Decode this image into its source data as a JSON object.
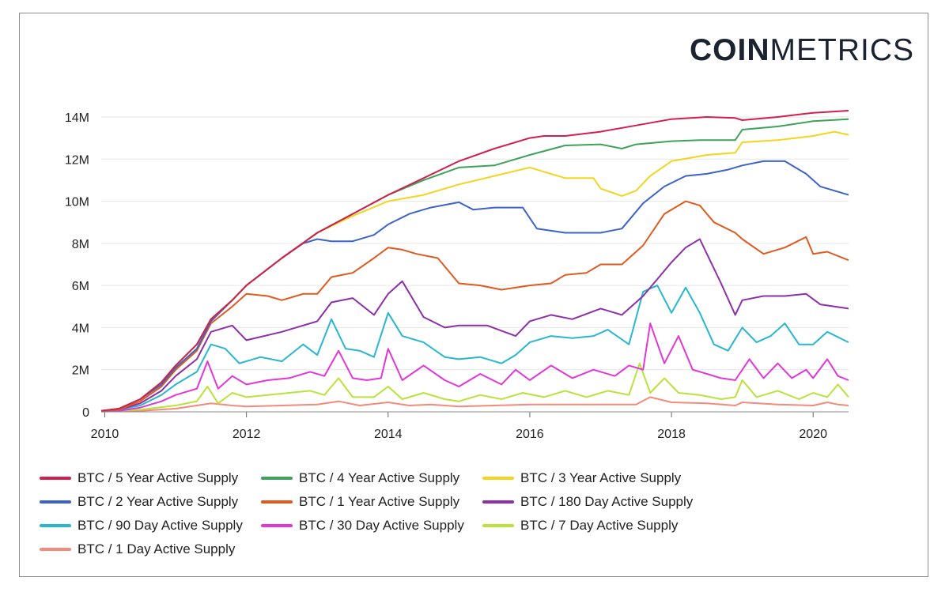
{
  "brand": {
    "bold": "COIN",
    "light": "METRICS"
  },
  "chart_data": {
    "type": "line",
    "title": "",
    "xlabel": "",
    "ylabel": "",
    "x_ticks": [
      "2010",
      "2012",
      "2014",
      "2016",
      "2018",
      "2020"
    ],
    "y_ticks": [
      "0",
      "2M",
      "4M",
      "6M",
      "8M",
      "10M",
      "12M",
      "14M"
    ],
    "xlim": [
      2009.95,
      2020.5
    ],
    "ylim": [
      0,
      14
    ],
    "y_unit": "millions",
    "grid": true,
    "legend_position": "bottom",
    "series": [
      {
        "name": "BTC / 5 Year Active Supply",
        "color": "#d21f4e",
        "x": [
          2009.95,
          2010.2,
          2010.5,
          2010.8,
          2011.0,
          2011.3,
          2011.5,
          2011.8,
          2012.0,
          2012.5,
          2013.0,
          2013.5,
          2014.0,
          2014.5,
          2015.0,
          2015.5,
          2016.0,
          2016.2,
          2016.5,
          2017.0,
          2017.5,
          2018.0,
          2018.5,
          2018.9,
          2019.0,
          2019.5,
          2020.0,
          2020.5
        ],
        "y": [
          0.05,
          0.15,
          0.6,
          1.4,
          2.2,
          3.2,
          4.4,
          5.3,
          6.0,
          7.3,
          8.5,
          9.4,
          10.3,
          11.1,
          11.9,
          12.5,
          13.0,
          13.1,
          13.1,
          13.3,
          13.6,
          13.9,
          14.0,
          13.95,
          13.85,
          14.0,
          14.2,
          14.3
        ]
      },
      {
        "name": "BTC / 4 Year Active Supply",
        "color": "#3ea259",
        "x": [
          2009.95,
          2010.2,
          2010.5,
          2010.8,
          2011.0,
          2011.3,
          2011.5,
          2011.8,
          2012.0,
          2012.5,
          2013.0,
          2013.5,
          2014.0,
          2014.5,
          2015.0,
          2015.5,
          2016.0,
          2016.5,
          2017.0,
          2017.3,
          2017.5,
          2018.0,
          2018.4,
          2018.9,
          2019.0,
          2019.5,
          2020.0,
          2020.5
        ],
        "y": [
          0.05,
          0.15,
          0.6,
          1.4,
          2.2,
          3.2,
          4.4,
          5.3,
          6.0,
          7.3,
          8.5,
          9.4,
          10.3,
          11.0,
          11.6,
          11.7,
          12.2,
          12.65,
          12.7,
          12.5,
          12.7,
          12.85,
          12.9,
          12.9,
          13.4,
          13.55,
          13.8,
          13.9
        ]
      },
      {
        "name": "BTC / 3 Year Active Supply",
        "color": "#f2d51f",
        "x": [
          2009.95,
          2010.2,
          2010.5,
          2010.8,
          2011.0,
          2011.3,
          2011.5,
          2011.8,
          2012.0,
          2012.5,
          2013.0,
          2013.5,
          2014.0,
          2014.5,
          2015.0,
          2015.5,
          2016.0,
          2016.5,
          2016.9,
          2017.0,
          2017.3,
          2017.5,
          2017.7,
          2018.0,
          2018.5,
          2018.9,
          2019.0,
          2019.5,
          2020.0,
          2020.3,
          2020.5
        ],
        "y": [
          0.05,
          0.15,
          0.6,
          1.4,
          2.2,
          3.2,
          4.4,
          5.3,
          6.0,
          7.3,
          8.5,
          9.3,
          10.0,
          10.3,
          10.8,
          11.2,
          11.6,
          11.1,
          11.1,
          10.6,
          10.25,
          10.5,
          11.2,
          11.9,
          12.2,
          12.3,
          12.8,
          12.9,
          13.1,
          13.3,
          13.15
        ]
      },
      {
        "name": "BTC / 2 Year Active Supply",
        "color": "#3d63c9",
        "x": [
          2009.95,
          2010.2,
          2010.5,
          2010.8,
          2011.0,
          2011.3,
          2011.5,
          2011.8,
          2012.0,
          2012.5,
          2012.8,
          2013.0,
          2013.2,
          2013.5,
          2013.8,
          2014.0,
          2014.3,
          2014.6,
          2015.0,
          2015.2,
          2015.5,
          2015.9,
          2016.1,
          2016.5,
          2017.0,
          2017.3,
          2017.6,
          2017.9,
          2018.2,
          2018.5,
          2018.8,
          2019.0,
          2019.3,
          2019.6,
          2019.9,
          2020.1,
          2020.5
        ],
        "y": [
          0.05,
          0.15,
          0.6,
          1.3,
          2.1,
          3.0,
          4.3,
          5.3,
          6.0,
          7.3,
          8.0,
          8.2,
          8.1,
          8.1,
          8.4,
          8.9,
          9.4,
          9.7,
          9.95,
          9.6,
          9.7,
          9.7,
          8.7,
          8.5,
          8.5,
          8.7,
          9.9,
          10.7,
          11.2,
          11.3,
          11.5,
          11.7,
          11.9,
          11.9,
          11.3,
          10.7,
          10.3
        ]
      },
      {
        "name": "BTC / 1 Year Active Supply",
        "color": "#df5a1f",
        "x": [
          2009.95,
          2010.2,
          2010.5,
          2010.8,
          2011.0,
          2011.3,
          2011.5,
          2011.8,
          2012.0,
          2012.3,
          2012.5,
          2012.8,
          2013.0,
          2013.2,
          2013.5,
          2013.8,
          2014.0,
          2014.2,
          2014.4,
          2014.7,
          2015.0,
          2015.3,
          2015.6,
          2016.0,
          2016.3,
          2016.5,
          2016.8,
          2017.0,
          2017.3,
          2017.5,
          2017.6,
          2017.9,
          2018.2,
          2018.4,
          2018.6,
          2018.9,
          2019.0,
          2019.3,
          2019.6,
          2019.9,
          2020.0,
          2020.2,
          2020.5
        ],
        "y": [
          0.05,
          0.1,
          0.5,
          1.2,
          2.0,
          2.9,
          4.2,
          5.0,
          5.6,
          5.5,
          5.3,
          5.6,
          5.6,
          6.4,
          6.6,
          7.3,
          7.8,
          7.7,
          7.5,
          7.3,
          6.1,
          6.0,
          5.8,
          6.0,
          6.1,
          6.5,
          6.6,
          7.0,
          7.0,
          7.6,
          7.9,
          9.4,
          10.0,
          9.8,
          9.0,
          8.5,
          8.2,
          7.5,
          7.8,
          8.3,
          7.5,
          7.6,
          7.2
        ]
      },
      {
        "name": "BTC / 180 Day Active Supply",
        "color": "#8c2fa8",
        "x": [
          2009.95,
          2010.2,
          2010.5,
          2010.8,
          2011.0,
          2011.3,
          2011.5,
          2011.8,
          2012.0,
          2012.5,
          2013.0,
          2013.2,
          2013.5,
          2013.8,
          2014.0,
          2014.2,
          2014.5,
          2014.8,
          2015.0,
          2015.4,
          2015.8,
          2016.0,
          2016.3,
          2016.6,
          2017.0,
          2017.3,
          2017.6,
          2017.8,
          2018.0,
          2018.2,
          2018.4,
          2018.7,
          2018.9,
          2019.0,
          2019.3,
          2019.6,
          2019.9,
          2020.1,
          2020.5
        ],
        "y": [
          0.05,
          0.1,
          0.4,
          1.0,
          1.7,
          2.5,
          3.8,
          4.1,
          3.4,
          3.8,
          4.3,
          5.2,
          5.4,
          4.6,
          5.6,
          6.2,
          4.5,
          4.0,
          4.1,
          4.1,
          3.6,
          4.3,
          4.6,
          4.4,
          4.9,
          4.6,
          5.5,
          6.3,
          7.1,
          7.8,
          8.2,
          6.1,
          4.6,
          5.3,
          5.5,
          5.5,
          5.6,
          5.1,
          4.9
        ]
      },
      {
        "name": "BTC / 90 Day Active Supply",
        "color": "#27b7cf",
        "x": [
          2009.95,
          2010.2,
          2010.5,
          2010.8,
          2011.0,
          2011.3,
          2011.5,
          2011.7,
          2011.9,
          2012.2,
          2012.5,
          2012.8,
          2013.0,
          2013.2,
          2013.4,
          2013.6,
          2013.8,
          2014.0,
          2014.2,
          2014.5,
          2014.8,
          2015.0,
          2015.3,
          2015.6,
          2015.8,
          2016.0,
          2016.3,
          2016.6,
          2016.9,
          2017.1,
          2017.4,
          2017.6,
          2017.8,
          2018.0,
          2018.2,
          2018.4,
          2018.6,
          2018.8,
          2019.0,
          2019.2,
          2019.4,
          2019.6,
          2019.8,
          2020.0,
          2020.2,
          2020.5
        ],
        "y": [
          0.05,
          0.1,
          0.3,
          0.8,
          1.3,
          1.9,
          3.2,
          3.0,
          2.3,
          2.6,
          2.4,
          3.2,
          2.7,
          4.4,
          3.0,
          2.9,
          2.6,
          4.7,
          3.6,
          3.3,
          2.6,
          2.5,
          2.6,
          2.3,
          2.7,
          3.3,
          3.6,
          3.5,
          3.6,
          3.9,
          3.2,
          5.7,
          6.0,
          4.7,
          5.9,
          4.7,
          3.2,
          2.9,
          4.0,
          3.3,
          3.6,
          4.2,
          3.2,
          3.2,
          3.8,
          3.3
        ]
      },
      {
        "name": "BTC / 30 Day Active Supply",
        "color": "#e237d8",
        "x": [
          2009.95,
          2010.2,
          2010.5,
          2010.8,
          2011.0,
          2011.3,
          2011.45,
          2011.6,
          2011.8,
          2012.0,
          2012.3,
          2012.6,
          2012.9,
          2013.1,
          2013.3,
          2013.5,
          2013.7,
          2013.9,
          2014.0,
          2014.2,
          2014.5,
          2014.8,
          2015.0,
          2015.3,
          2015.6,
          2015.8,
          2016.0,
          2016.3,
          2016.6,
          2016.9,
          2017.2,
          2017.4,
          2017.6,
          2017.7,
          2017.9,
          2018.1,
          2018.3,
          2018.5,
          2018.7,
          2018.9,
          2019.1,
          2019.3,
          2019.5,
          2019.7,
          2019.9,
          2020.0,
          2020.2,
          2020.35,
          2020.5
        ],
        "y": [
          0.03,
          0.05,
          0.2,
          0.5,
          0.8,
          1.1,
          2.4,
          1.1,
          1.7,
          1.3,
          1.5,
          1.6,
          1.9,
          1.7,
          2.9,
          1.6,
          1.5,
          1.6,
          3.0,
          1.5,
          2.2,
          1.5,
          1.2,
          1.8,
          1.3,
          2.0,
          1.5,
          2.2,
          1.6,
          2.0,
          1.7,
          2.2,
          2.0,
          4.2,
          2.3,
          3.6,
          2.0,
          1.8,
          1.6,
          1.5,
          2.5,
          1.6,
          2.3,
          1.6,
          2.0,
          1.6,
          2.5,
          1.7,
          1.5
        ]
      },
      {
        "name": "BTC / 7 Day Active Supply",
        "color": "#b9e33a",
        "x": [
          2009.95,
          2010.5,
          2011.0,
          2011.3,
          2011.45,
          2011.6,
          2011.8,
          2012.0,
          2012.3,
          2012.6,
          2012.9,
          2013.1,
          2013.3,
          2013.5,
          2013.8,
          2014.0,
          2014.2,
          2014.5,
          2014.8,
          2015.0,
          2015.3,
          2015.6,
          2015.9,
          2016.2,
          2016.5,
          2016.8,
          2017.1,
          2017.4,
          2017.55,
          2017.7,
          2017.9,
          2018.1,
          2018.4,
          2018.7,
          2018.9,
          2019.0,
          2019.2,
          2019.5,
          2019.8,
          2020.0,
          2020.2,
          2020.35,
          2020.5
        ],
        "y": [
          0.02,
          0.1,
          0.3,
          0.5,
          1.2,
          0.4,
          0.9,
          0.7,
          0.8,
          0.9,
          1.0,
          0.8,
          1.6,
          0.7,
          0.7,
          1.2,
          0.6,
          0.9,
          0.6,
          0.5,
          0.8,
          0.6,
          0.9,
          0.7,
          1.0,
          0.7,
          1.0,
          0.8,
          2.3,
          0.9,
          1.6,
          0.9,
          0.8,
          0.6,
          0.7,
          1.5,
          0.7,
          1.0,
          0.6,
          0.9,
          0.7,
          1.3,
          0.7
        ]
      },
      {
        "name": "BTC / 1 Day Active Supply",
        "color": "#f48a7c",
        "x": [
          2009.95,
          2010.5,
          2011.0,
          2011.5,
          2011.8,
          2012.0,
          2012.5,
          2013.0,
          2013.3,
          2013.6,
          2014.0,
          2014.3,
          2014.6,
          2015.0,
          2015.5,
          2016.0,
          2016.5,
          2017.0,
          2017.5,
          2017.7,
          2018.0,
          2018.5,
          2018.9,
          2019.0,
          2019.5,
          2020.0,
          2020.2,
          2020.35,
          2020.5
        ],
        "y": [
          0.01,
          0.05,
          0.15,
          0.4,
          0.3,
          0.25,
          0.3,
          0.35,
          0.5,
          0.3,
          0.45,
          0.3,
          0.35,
          0.25,
          0.3,
          0.35,
          0.35,
          0.35,
          0.35,
          0.7,
          0.45,
          0.4,
          0.3,
          0.45,
          0.35,
          0.3,
          0.45,
          0.35,
          0.3
        ]
      }
    ]
  }
}
